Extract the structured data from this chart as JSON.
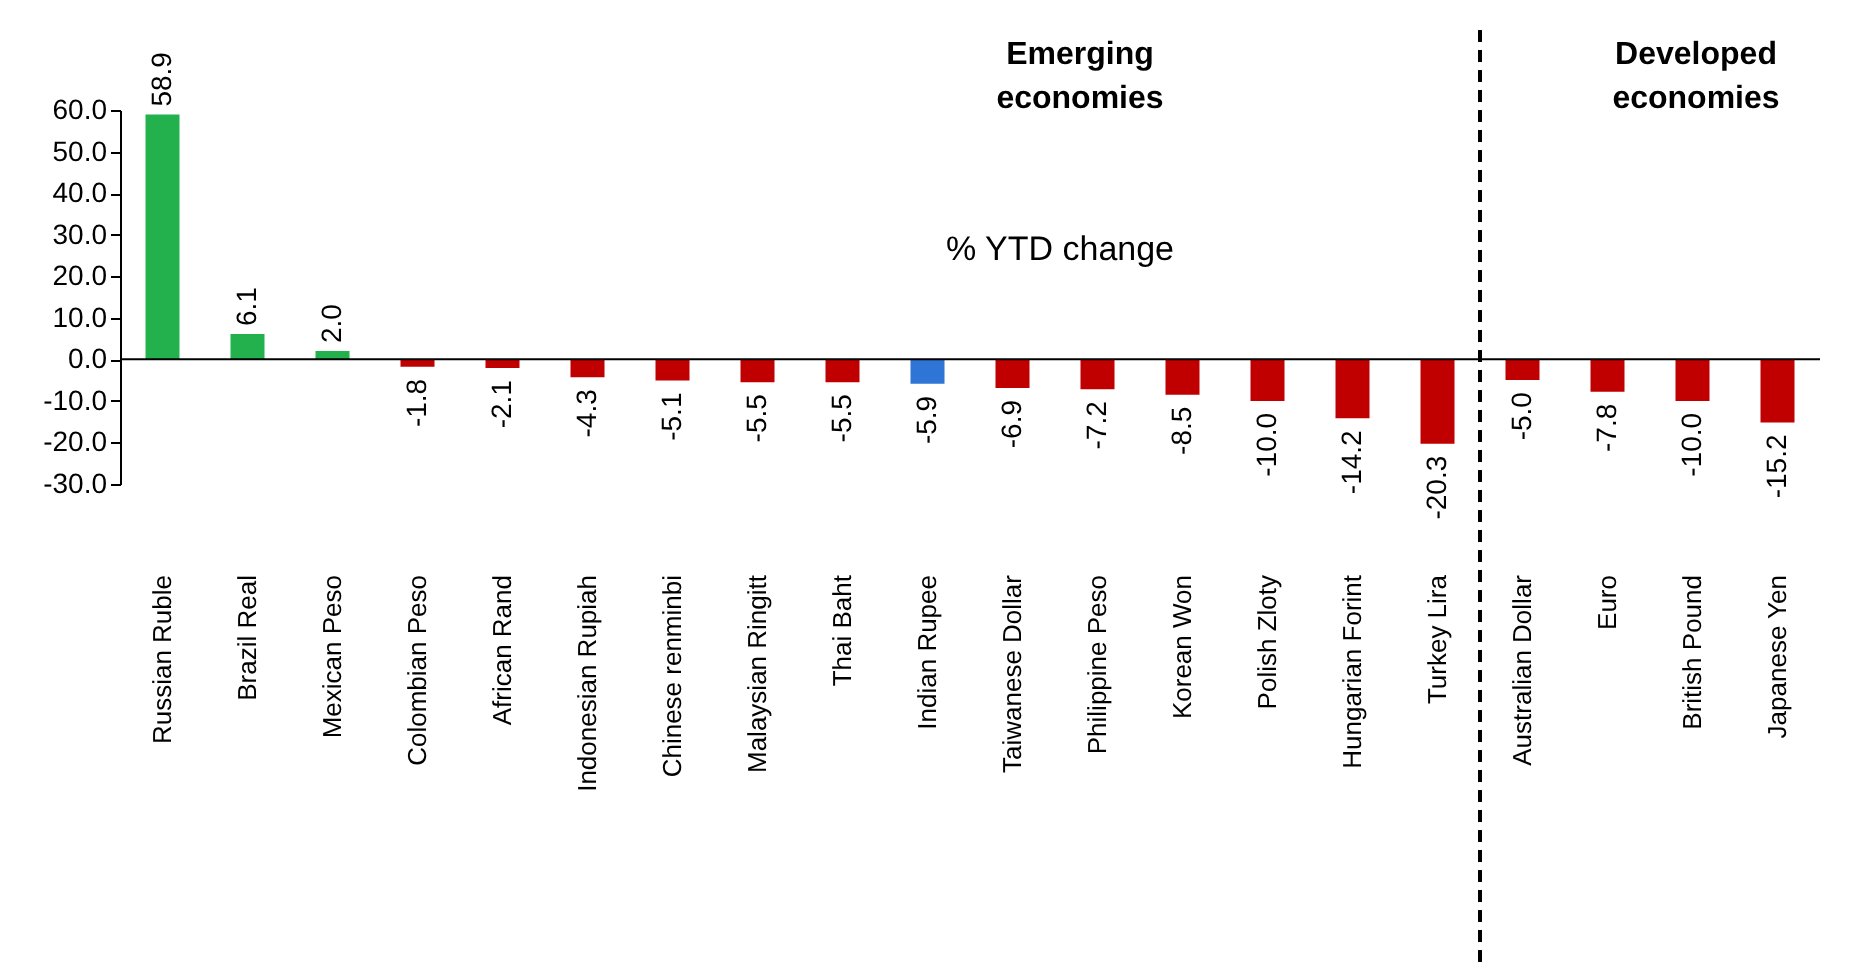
{
  "chart_data": {
    "type": "bar",
    "categories": [
      "Russian Ruble",
      "Brazil Real",
      "Mexican Peso",
      "Colombian Peso",
      "African Rand",
      "Indonesian Rupiah",
      "Chinese renminbi",
      "Malaysian Ringitt",
      "Thai Baht",
      "Indian Rupee",
      "Taiwanese Dollar",
      "Philippine Peso",
      "Korean Won",
      "Polish Zloty",
      "Hungarian Forint",
      "Turkey Lira",
      "Australian Dollar",
      "Euro",
      "British Pound",
      "Japanese Yen"
    ],
    "values": [
      58.9,
      6.1,
      2.0,
      -1.8,
      -2.1,
      -4.3,
      -5.1,
      -5.5,
      -5.5,
      -5.9,
      -6.9,
      -7.2,
      -8.5,
      -10.0,
      -14.2,
      -20.3,
      -5.0,
      -7.8,
      -10.0,
      -15.2
    ],
    "value_labels": [
      "58.9",
      "6.1",
      "2.0",
      "-1.8",
      "-2.1",
      "-4.3",
      "-5.1",
      "-5.5",
      "-5.5",
      "-5.9",
      "-6.9",
      "-7.2",
      "-8.5",
      "-10.0",
      "-14.2",
      "-20.3",
      "-5.0",
      "-7.8",
      "-10.0",
      "-15.2"
    ],
    "colors": [
      "#22b14c",
      "#22b14c",
      "#22b14c",
      "#c00000",
      "#c00000",
      "#c00000",
      "#c00000",
      "#c00000",
      "#c00000",
      "#2e75d6",
      "#c00000",
      "#c00000",
      "#c00000",
      "#c00000",
      "#c00000",
      "#c00000",
      "#c00000",
      "#c00000",
      "#c00000",
      "#c00000"
    ],
    "ylim": [
      -30,
      60
    ],
    "yticks": [
      {
        "value": -30,
        "label": "-30.0"
      },
      {
        "value": -20,
        "label": "-20.0"
      },
      {
        "value": -10,
        "label": "-10.0"
      },
      {
        "value": 0,
        "label": "0.0"
      },
      {
        "value": 10,
        "label": "10.0"
      },
      {
        "value": 20,
        "label": "20.0"
      },
      {
        "value": 30,
        "label": "30.0"
      },
      {
        "value": 40,
        "label": "40.0"
      },
      {
        "value": 50,
        "label": "50.0"
      },
      {
        "value": 60,
        "label": "60.0"
      }
    ],
    "ref_lines": [
      {
        "axis": "x",
        "value": "Australian Dollar",
        "line_style": "dashed",
        "color": "#000000"
      }
    ],
    "annotations": [
      "Emerging economies",
      "Developed economies",
      "% YTD change"
    ],
    "grid": false
  }
}
